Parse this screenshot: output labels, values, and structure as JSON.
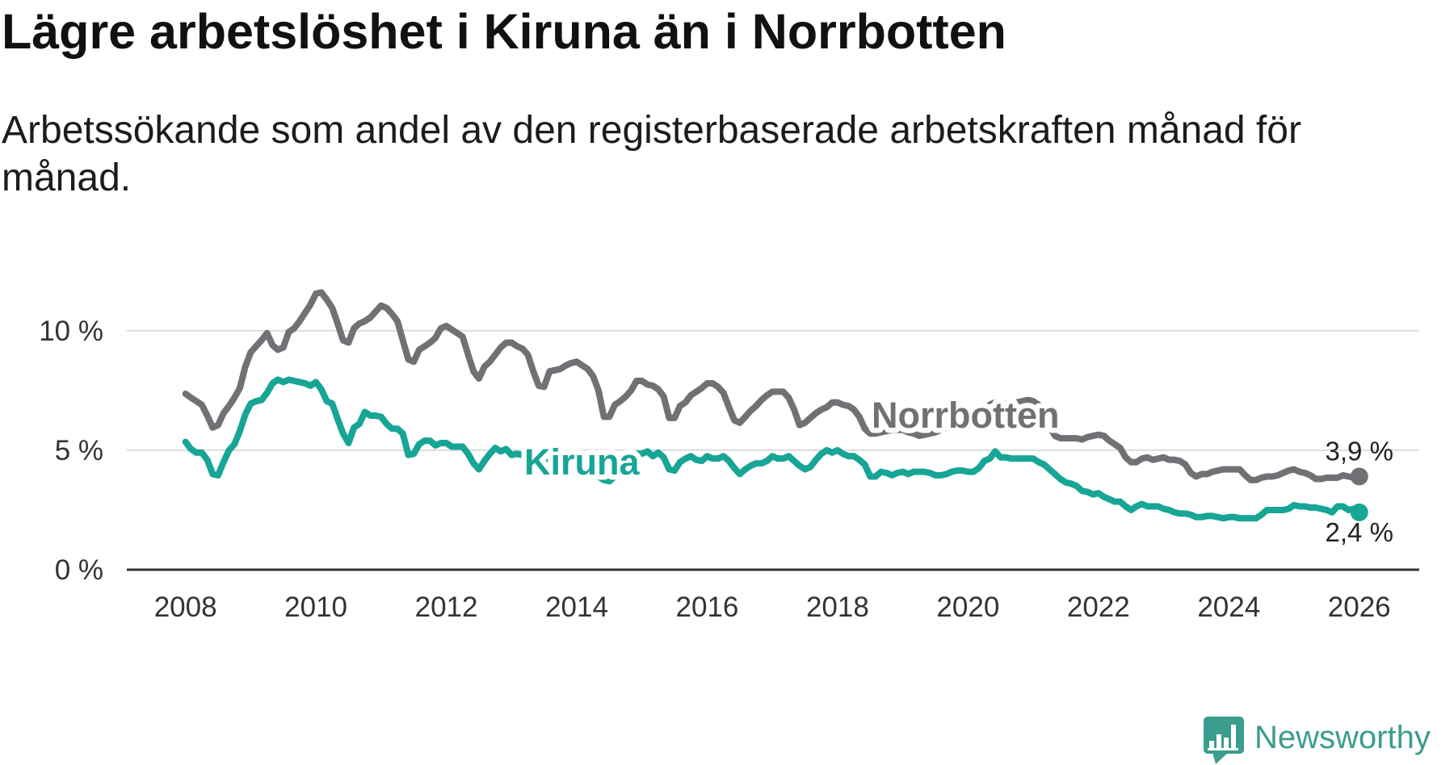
{
  "chart_data": {
    "type": "line",
    "title": "Lägre arbetslöshet i Kiruna än i Norrbotten",
    "subtitle": "Arbetssökande som andel av den registerbaserade arbetskraften månad för månad.",
    "xlabel": "",
    "ylabel": "",
    "x_start": 2008,
    "points_per_year": 12,
    "xlim": [
      2007.1,
      2026.92
    ],
    "ylim": [
      0,
      12
    ],
    "xticks": [
      2008,
      2010,
      2012,
      2014,
      2016,
      2018,
      2020,
      2022,
      2024,
      2026
    ],
    "xtick_labels": [
      "2008",
      "2010",
      "2012",
      "2014",
      "2016",
      "2018",
      "2020",
      "2022",
      "2024",
      "2026"
    ],
    "yticks": [
      0,
      5,
      10
    ],
    "ytick_labels": [
      "0 %",
      "5 %",
      "10 %"
    ],
    "grid": true,
    "series": [
      {
        "name": "Norrbotten",
        "color": "#717175",
        "end_value": 3.9,
        "end_label": "3,9 %",
        "values": [
          7.36,
          7.2,
          7.05,
          6.9,
          6.45,
          5.95,
          6.05,
          6.55,
          6.85,
          7.2,
          7.6,
          8.5,
          9.1,
          9.35,
          9.6,
          9.9,
          9.4,
          9.2,
          9.3,
          9.95,
          10.1,
          10.4,
          10.75,
          11.1,
          11.55,
          11.6,
          11.3,
          10.95,
          10.3,
          9.6,
          9.5,
          10.1,
          10.3,
          10.4,
          10.55,
          10.8,
          11.05,
          10.95,
          10.7,
          10.4,
          9.6,
          8.8,
          8.7,
          9.2,
          9.35,
          9.5,
          9.7,
          10.1,
          10.2,
          10.05,
          9.9,
          9.75,
          9.0,
          8.3,
          8.0,
          8.5,
          8.7,
          9.0,
          9.3,
          9.5,
          9.5,
          9.35,
          9.25,
          9.0,
          8.3,
          7.7,
          7.65,
          8.3,
          8.35,
          8.4,
          8.55,
          8.65,
          8.7,
          8.55,
          8.4,
          8.1,
          7.5,
          6.4,
          6.4,
          6.9,
          7.05,
          7.25,
          7.5,
          7.9,
          7.9,
          7.75,
          7.7,
          7.55,
          7.25,
          6.35,
          6.35,
          6.85,
          7.0,
          7.3,
          7.45,
          7.6,
          7.8,
          7.8,
          7.65,
          7.4,
          6.8,
          6.25,
          6.15,
          6.4,
          6.65,
          6.85,
          7.1,
          7.3,
          7.45,
          7.45,
          7.45,
          7.2,
          6.7,
          6.05,
          6.15,
          6.35,
          6.55,
          6.7,
          6.8,
          7.0,
          7.0,
          6.9,
          6.85,
          6.7,
          6.4,
          5.9,
          5.7,
          5.7,
          5.75,
          5.8,
          5.85,
          5.85,
          5.85,
          5.75,
          5.7,
          5.6,
          5.65,
          5.7,
          5.75,
          5.85,
          5.95,
          6.0,
          6.05,
          6.05,
          6.05,
          6.2,
          6.4,
          6.65,
          6.9,
          7.0,
          6.95,
          6.95,
          6.95,
          7.0,
          7.05,
          7.1,
          7.05,
          6.9,
          6.5,
          6.0,
          5.6,
          5.5,
          5.5,
          5.5,
          5.5,
          5.45,
          5.55,
          5.6,
          5.65,
          5.6,
          5.4,
          5.25,
          5.1,
          4.7,
          4.5,
          4.5,
          4.65,
          4.7,
          4.6,
          4.65,
          4.7,
          4.6,
          4.6,
          4.55,
          4.4,
          4.05,
          3.9,
          4.0,
          4.0,
          4.1,
          4.15,
          4.2,
          4.2,
          4.2,
          4.2,
          3.95,
          3.75,
          3.75,
          3.85,
          3.9,
          3.9,
          3.95,
          4.05,
          4.15,
          4.2,
          4.1,
          4.05,
          3.95,
          3.8,
          3.8,
          3.85,
          3.85,
          3.85,
          3.95,
          3.9,
          3.85,
          3.9
        ]
      },
      {
        "name": "Kiruna",
        "color": "#17a596",
        "end_value": 2.4,
        "end_label": "2,4 %",
        "values": [
          5.35,
          5.05,
          4.9,
          4.9,
          4.6,
          4.0,
          3.95,
          4.5,
          5.0,
          5.25,
          5.8,
          6.5,
          6.95,
          7.05,
          7.1,
          7.4,
          7.8,
          7.95,
          7.85,
          7.95,
          7.9,
          7.85,
          7.8,
          7.7,
          7.85,
          7.55,
          7.05,
          6.95,
          6.3,
          5.7,
          5.3,
          5.95,
          6.1,
          6.6,
          6.45,
          6.45,
          6.4,
          6.1,
          5.9,
          5.9,
          5.7,
          4.8,
          4.85,
          5.25,
          5.4,
          5.4,
          5.2,
          5.3,
          5.3,
          5.15,
          5.15,
          5.15,
          4.85,
          4.45,
          4.2,
          4.55,
          4.85,
          5.1,
          4.95,
          5.05,
          4.8,
          4.85,
          4.8,
          4.7,
          4.65,
          4.6,
          4.55,
          4.55,
          4.6,
          4.65,
          4.65,
          4.6,
          4.6,
          4.5,
          4.4,
          4.2,
          3.9,
          3.75,
          3.7,
          3.9,
          4.2,
          4.5,
          4.7,
          4.85,
          4.85,
          4.95,
          4.75,
          4.9,
          4.7,
          4.2,
          4.15,
          4.5,
          4.65,
          4.75,
          4.6,
          4.55,
          4.75,
          4.65,
          4.65,
          4.75,
          4.55,
          4.25,
          4.0,
          4.2,
          4.35,
          4.45,
          4.45,
          4.55,
          4.75,
          4.65,
          4.65,
          4.75,
          4.55,
          4.35,
          4.2,
          4.3,
          4.6,
          4.85,
          5.0,
          4.9,
          5.0,
          4.85,
          4.75,
          4.75,
          4.6,
          4.4,
          3.9,
          3.9,
          4.1,
          4.05,
          3.95,
          4.05,
          4.1,
          4.0,
          4.1,
          4.1,
          4.1,
          4.05,
          3.95,
          3.95,
          4.0,
          4.1,
          4.15,
          4.15,
          4.1,
          4.1,
          4.25,
          4.55,
          4.65,
          4.95,
          4.7,
          4.7,
          4.65,
          4.65,
          4.65,
          4.65,
          4.65,
          4.5,
          4.4,
          4.2,
          4.0,
          3.8,
          3.65,
          3.6,
          3.5,
          3.3,
          3.25,
          3.15,
          3.2,
          3.05,
          2.95,
          2.85,
          2.85,
          2.65,
          2.5,
          2.65,
          2.75,
          2.65,
          2.65,
          2.65,
          2.55,
          2.5,
          2.4,
          2.35,
          2.35,
          2.3,
          2.2,
          2.2,
          2.25,
          2.25,
          2.2,
          2.15,
          2.2,
          2.2,
          2.15,
          2.15,
          2.15,
          2.15,
          2.3,
          2.5,
          2.5,
          2.5,
          2.5,
          2.55,
          2.7,
          2.65,
          2.65,
          2.6,
          2.6,
          2.55,
          2.5,
          2.4,
          2.65,
          2.65,
          2.5,
          2.55,
          2.4
        ]
      }
    ]
  },
  "style": {
    "title_color": "#111111",
    "gridline_color": "#dcdcdc",
    "axis_color": "#333333"
  },
  "branding": {
    "name": "Newsworthy",
    "color": "#3a9d8e",
    "icon": "newsworthy-logo-icon"
  }
}
